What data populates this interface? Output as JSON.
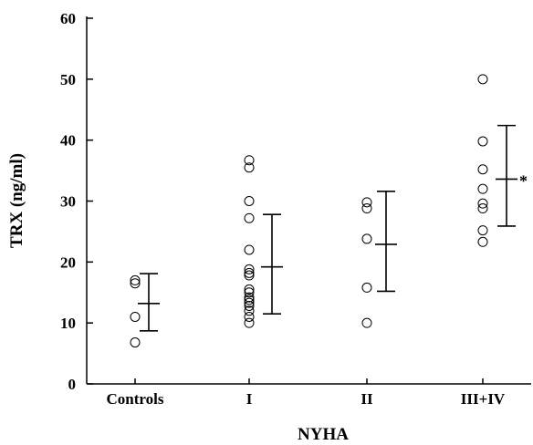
{
  "chart_data": {
    "type": "scatter",
    "title": "",
    "xlabel": "NYHA",
    "ylabel": "TRX (ng/ml)",
    "ylim": [
      0,
      60
    ],
    "yticks": [
      "0",
      "10",
      "20",
      "30",
      "40",
      "50",
      "60"
    ],
    "grid": false,
    "categories": [
      "Controls",
      "I",
      "II",
      "III+IV"
    ],
    "groups": [
      {
        "category": "Controls",
        "points": [
          6.8,
          11.0,
          16.5,
          17.0
        ],
        "mean": 13.2,
        "sd_low": 8.7,
        "sd_high": 18.1,
        "annotation": ""
      },
      {
        "category": "I",
        "points": [
          36.7,
          35.5,
          30.0,
          27.2,
          22.0,
          18.8,
          18.2,
          17.8,
          15.5,
          15.0,
          14.2,
          13.8,
          13.3,
          12.8,
          12.0,
          11.0,
          10.0
        ],
        "mean": 19.2,
        "sd_low": 11.5,
        "sd_high": 27.8,
        "annotation": ""
      },
      {
        "category": "II",
        "points": [
          29.8,
          28.8,
          23.8,
          15.8,
          10.0
        ],
        "mean": 22.9,
        "sd_low": 15.2,
        "sd_high": 31.6,
        "annotation": ""
      },
      {
        "category": "III+IV",
        "points": [
          50.0,
          39.8,
          35.2,
          32.0,
          29.6,
          28.8,
          25.2,
          23.3
        ],
        "mean": 33.6,
        "sd_low": 25.9,
        "sd_high": 42.4,
        "annotation": "*"
      }
    ]
  }
}
